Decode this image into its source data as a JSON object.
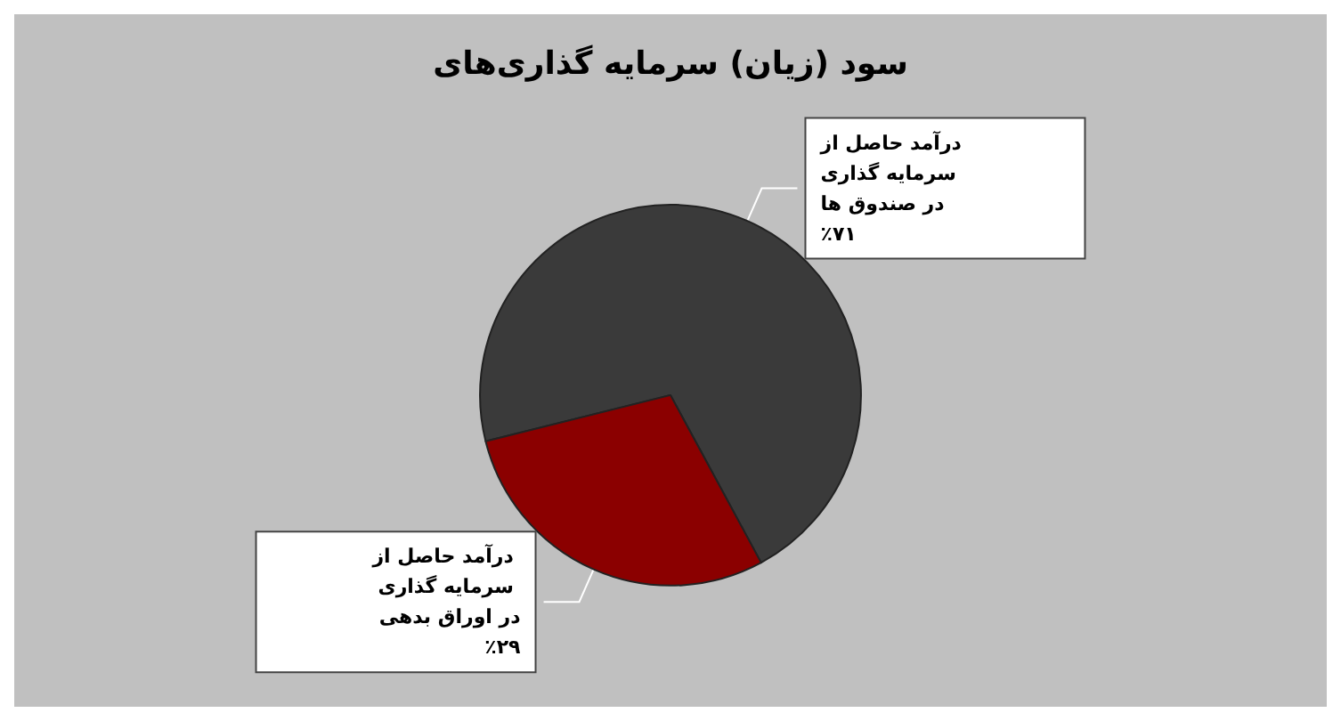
{
  "chart_data": {
    "type": "pie",
    "title": "سود (زیان) سرمایه گذاری‌های",
    "categories": [
      "درآمد حاصل از سرمایه گذاری در صندوق ها",
      "درآمد حاصل از سرمایه گذاری در اوراق بدهی"
    ],
    "values": [
      71,
      29
    ],
    "colors": [
      "#3a3a3a",
      "#8b0000"
    ],
    "value_labels": [
      "٪۷۱",
      "٪۲۹"
    ]
  }
}
